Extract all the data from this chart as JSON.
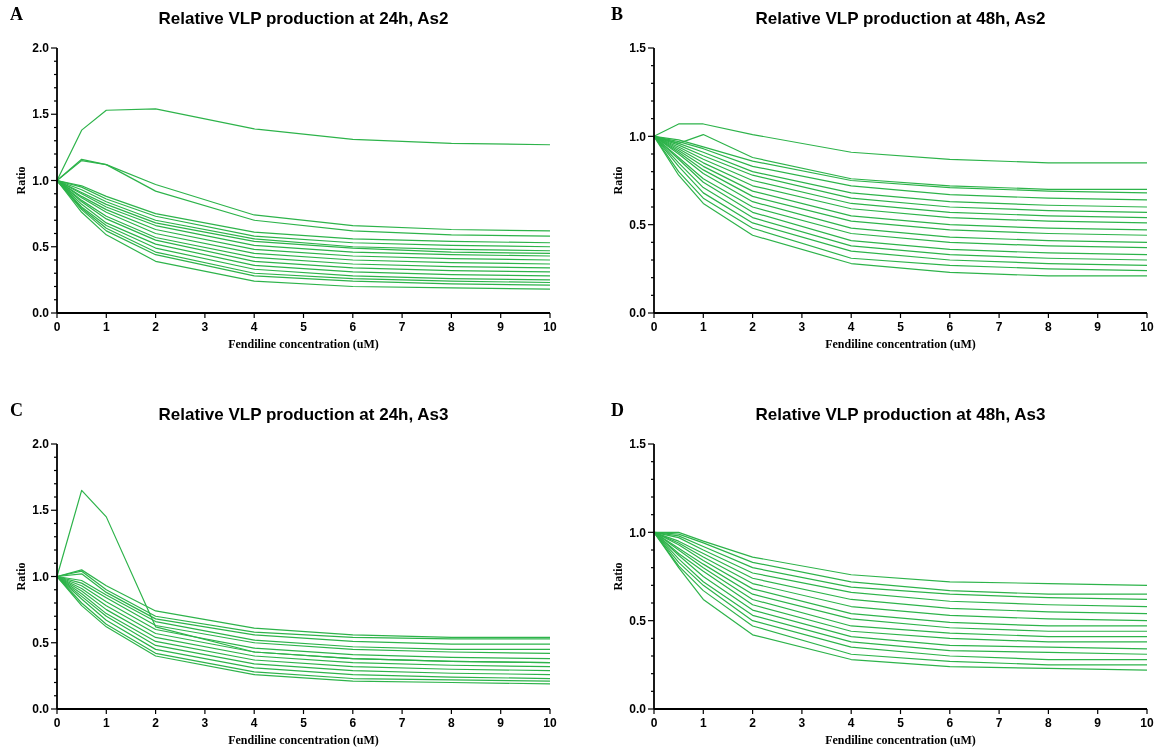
{
  "chart_data": [
    {
      "type": "line",
      "title": "Relative VLP production at 24h, As2",
      "xlabel": "Fendiline concentration (uM)",
      "ylabel": "Ratio",
      "annotations": [
        "A"
      ],
      "x": [
        0,
        0.5,
        1,
        2,
        4,
        6,
        8,
        10
      ],
      "xlim": [
        0,
        10
      ],
      "xticks": [
        0,
        1,
        2,
        3,
        4,
        5,
        6,
        7,
        8,
        9,
        10
      ],
      "ylim": [
        0,
        2
      ],
      "yticks": [
        {
          "value": 0,
          "label": "0.0"
        },
        {
          "value": 0.1,
          "label": null
        },
        {
          "value": 0.2,
          "label": null
        },
        {
          "value": 0.3,
          "label": null
        },
        {
          "value": 0.4,
          "label": null
        },
        {
          "value": 0.5,
          "label": "0.5"
        },
        {
          "value": 0.6,
          "label": null
        },
        {
          "value": 0.7,
          "label": null
        },
        {
          "value": 0.8,
          "label": null
        },
        {
          "value": 0.9,
          "label": null
        },
        {
          "value": 1,
          "label": "1.0"
        },
        {
          "value": 1.1,
          "label": null
        },
        {
          "value": 1.2,
          "label": null
        },
        {
          "value": 1.3,
          "label": null
        },
        {
          "value": 1.4,
          "label": null
        },
        {
          "value": 1.5,
          "label": "1.5"
        },
        {
          "value": 1.6,
          "label": null
        },
        {
          "value": 1.7,
          "label": null
        },
        {
          "value": 1.8,
          "label": null
        },
        {
          "value": 1.9,
          "label": null
        },
        {
          "value": 2,
          "label": "2.0"
        }
      ],
      "series": [
        {
          "color": "#2db34a",
          "values": [
            1,
            1.38,
            1.53,
            1.54,
            1.39,
            1.31,
            1.28,
            1.27
          ]
        },
        {
          "color": "#2db34a",
          "values": [
            1,
            1.16,
            1.12,
            0.97,
            0.74,
            0.66,
            0.63,
            0.62
          ]
        },
        {
          "color": "#2db34a",
          "values": [
            1,
            1.15,
            1.12,
            0.92,
            0.7,
            0.62,
            0.59,
            0.58
          ]
        },
        {
          "color": "#2db34a",
          "values": [
            1,
            0.96,
            0.88,
            0.75,
            0.61,
            0.56,
            0.54,
            0.53
          ]
        },
        {
          "color": "#2db34a",
          "values": [
            1,
            0.95,
            0.86,
            0.73,
            0.58,
            0.53,
            0.51,
            0.5
          ]
        },
        {
          "color": "#2db34a",
          "values": [
            1,
            0.93,
            0.84,
            0.7,
            0.56,
            0.5,
            0.48,
            0.47
          ]
        },
        {
          "color": "#2db34a",
          "values": [
            1,
            0.91,
            0.82,
            0.68,
            0.54,
            0.49,
            0.46,
            0.45
          ]
        },
        {
          "color": "#2db34a",
          "values": [
            1,
            0.9,
            0.8,
            0.66,
            0.51,
            0.46,
            0.44,
            0.43
          ]
        },
        {
          "color": "#2db34a",
          "values": [
            1,
            0.88,
            0.78,
            0.63,
            0.48,
            0.43,
            0.41,
            0.4
          ]
        },
        {
          "color": "#2db34a",
          "values": [
            1,
            0.87,
            0.76,
            0.6,
            0.45,
            0.4,
            0.38,
            0.37
          ]
        },
        {
          "color": "#2db34a",
          "values": [
            1,
            0.85,
            0.73,
            0.57,
            0.42,
            0.37,
            0.35,
            0.34
          ]
        },
        {
          "color": "#2db34a",
          "values": [
            1,
            0.84,
            0.71,
            0.55,
            0.39,
            0.34,
            0.32,
            0.31
          ]
        },
        {
          "color": "#2db34a",
          "values": [
            1,
            0.82,
            0.68,
            0.52,
            0.36,
            0.31,
            0.29,
            0.28
          ]
        },
        {
          "color": "#2db34a",
          "values": [
            1,
            0.8,
            0.66,
            0.49,
            0.33,
            0.28,
            0.26,
            0.25
          ]
        },
        {
          "color": "#2db34a",
          "values": [
            1,
            0.79,
            0.64,
            0.46,
            0.3,
            0.26,
            0.24,
            0.23
          ]
        },
        {
          "color": "#2db34a",
          "values": [
            1,
            0.78,
            0.62,
            0.44,
            0.28,
            0.24,
            0.22,
            0.21
          ]
        },
        {
          "color": "#2db34a",
          "values": [
            1,
            0.76,
            0.59,
            0.39,
            0.24,
            0.2,
            0.19,
            0.18
          ]
        }
      ]
    },
    {
      "type": "line",
      "title": "Relative VLP production at 48h, As2",
      "xlabel": "Fendiline concentration (uM)",
      "ylabel": "Ratio",
      "annotations": [
        "B"
      ],
      "x": [
        0,
        0.5,
        1,
        2,
        4,
        6,
        8,
        10
      ],
      "xlim": [
        0,
        10
      ],
      "xticks": [
        0,
        1,
        2,
        3,
        4,
        5,
        6,
        7,
        8,
        9,
        10
      ],
      "ylim": [
        0,
        1.5
      ],
      "yticks": [
        {
          "value": 0,
          "label": "0.0"
        },
        {
          "value": 0.1,
          "label": null
        },
        {
          "value": 0.2,
          "label": null
        },
        {
          "value": 0.3,
          "label": null
        },
        {
          "value": 0.4,
          "label": null
        },
        {
          "value": 0.5,
          "label": "0.5"
        },
        {
          "value": 0.6,
          "label": null
        },
        {
          "value": 0.7,
          "label": null
        },
        {
          "value": 0.8,
          "label": null
        },
        {
          "value": 0.9,
          "label": null
        },
        {
          "value": 1,
          "label": "1.0"
        },
        {
          "value": 1.1,
          "label": null
        },
        {
          "value": 1.2,
          "label": null
        },
        {
          "value": 1.3,
          "label": null
        },
        {
          "value": 1.4,
          "label": null
        },
        {
          "value": 1.5,
          "label": "1.5"
        }
      ],
      "series": [
        {
          "color": "#2db34a",
          "values": [
            1,
            1.07,
            1.07,
            1.01,
            0.91,
            0.87,
            0.85,
            0.85
          ]
        },
        {
          "color": "#2db34a",
          "values": [
            1,
            0.96,
            1.01,
            0.88,
            0.76,
            0.72,
            0.7,
            0.7
          ]
        },
        {
          "color": "#2db34a",
          "values": [
            1,
            0.98,
            0.94,
            0.86,
            0.75,
            0.71,
            0.69,
            0.68
          ]
        },
        {
          "color": "#2db34a",
          "values": [
            1,
            0.97,
            0.93,
            0.83,
            0.72,
            0.67,
            0.65,
            0.64
          ]
        },
        {
          "color": "#2db34a",
          "values": [
            1,
            0.96,
            0.91,
            0.8,
            0.68,
            0.63,
            0.61,
            0.6
          ]
        },
        {
          "color": "#2db34a",
          "values": [
            1,
            0.95,
            0.89,
            0.78,
            0.65,
            0.6,
            0.58,
            0.57
          ]
        },
        {
          "color": "#2db34a",
          "values": [
            1,
            0.94,
            0.87,
            0.75,
            0.62,
            0.57,
            0.55,
            0.54
          ]
        },
        {
          "color": "#2db34a",
          "values": [
            1,
            0.93,
            0.85,
            0.72,
            0.59,
            0.54,
            0.52,
            0.51
          ]
        },
        {
          "color": "#2db34a",
          "values": [
            1,
            0.92,
            0.83,
            0.69,
            0.55,
            0.5,
            0.48,
            0.47
          ]
        },
        {
          "color": "#2db34a",
          "values": [
            1,
            0.91,
            0.81,
            0.66,
            0.52,
            0.47,
            0.45,
            0.44
          ]
        },
        {
          "color": "#2db34a",
          "values": [
            1,
            0.9,
            0.79,
            0.63,
            0.48,
            0.43,
            0.41,
            0.4
          ]
        },
        {
          "color": "#2db34a",
          "values": [
            1,
            0.88,
            0.76,
            0.6,
            0.45,
            0.4,
            0.38,
            0.37
          ]
        },
        {
          "color": "#2db34a",
          "values": [
            1,
            0.87,
            0.74,
            0.57,
            0.41,
            0.36,
            0.34,
            0.33
          ]
        },
        {
          "color": "#2db34a",
          "values": [
            1,
            0.85,
            0.71,
            0.54,
            0.38,
            0.33,
            0.31,
            0.3
          ]
        },
        {
          "color": "#2db34a",
          "values": [
            1,
            0.83,
            0.68,
            0.51,
            0.35,
            0.3,
            0.28,
            0.27
          ]
        },
        {
          "color": "#2db34a",
          "values": [
            1,
            0.8,
            0.65,
            0.48,
            0.31,
            0.27,
            0.25,
            0.24
          ]
        },
        {
          "color": "#2db34a",
          "values": [
            1,
            0.78,
            0.62,
            0.44,
            0.28,
            0.23,
            0.21,
            0.21
          ]
        }
      ]
    },
    {
      "type": "line",
      "title": "Relative VLP production at 24h, As3",
      "xlabel": "Fendiline concentration (uM)",
      "ylabel": "Ratio",
      "annotations": [
        "C"
      ],
      "x": [
        0,
        0.5,
        1,
        2,
        4,
        6,
        8,
        10
      ],
      "xlim": [
        0,
        10
      ],
      "xticks": [
        0,
        1,
        2,
        3,
        4,
        5,
        6,
        7,
        8,
        9,
        10
      ],
      "ylim": [
        0,
        2
      ],
      "yticks": [
        {
          "value": 0,
          "label": "0.0"
        },
        {
          "value": 0.1,
          "label": null
        },
        {
          "value": 0.2,
          "label": null
        },
        {
          "value": 0.3,
          "label": null
        },
        {
          "value": 0.4,
          "label": null
        },
        {
          "value": 0.5,
          "label": "0.5"
        },
        {
          "value": 0.6,
          "label": null
        },
        {
          "value": 0.7,
          "label": null
        },
        {
          "value": 0.8,
          "label": null
        },
        {
          "value": 0.9,
          "label": null
        },
        {
          "value": 1,
          "label": "1.0"
        },
        {
          "value": 1.1,
          "label": null
        },
        {
          "value": 1.2,
          "label": null
        },
        {
          "value": 1.3,
          "label": null
        },
        {
          "value": 1.4,
          "label": null
        },
        {
          "value": 1.5,
          "label": "1.5"
        },
        {
          "value": 1.6,
          "label": null
        },
        {
          "value": 1.7,
          "label": null
        },
        {
          "value": 1.8,
          "label": null
        },
        {
          "value": 1.9,
          "label": null
        },
        {
          "value": 2,
          "label": "2.0"
        }
      ],
      "series": [
        {
          "color": "#2db34a",
          "values": [
            1,
            1.65,
            1.45,
            0.62,
            0.43,
            0.38,
            0.36,
            0.35
          ]
        },
        {
          "color": "#2db34a",
          "values": [
            1,
            1.05,
            0.93,
            0.74,
            0.61,
            0.56,
            0.54,
            0.54
          ]
        },
        {
          "color": "#2db34a",
          "values": [
            1,
            1.04,
            0.9,
            0.7,
            0.58,
            0.54,
            0.53,
            0.53
          ]
        },
        {
          "color": "#2db34a",
          "values": [
            1,
            1.02,
            0.88,
            0.68,
            0.56,
            0.51,
            0.49,
            0.49
          ]
        },
        {
          "color": "#2db34a",
          "values": [
            1,
            0.97,
            0.86,
            0.66,
            0.52,
            0.47,
            0.45,
            0.45
          ]
        },
        {
          "color": "#2db34a",
          "values": [
            1,
            0.95,
            0.84,
            0.63,
            0.5,
            0.45,
            0.43,
            0.42
          ]
        },
        {
          "color": "#2db34a",
          "values": [
            1,
            0.93,
            0.81,
            0.6,
            0.46,
            0.41,
            0.39,
            0.38
          ]
        },
        {
          "color": "#2db34a",
          "values": [
            1,
            0.91,
            0.78,
            0.57,
            0.43,
            0.38,
            0.36,
            0.35
          ]
        },
        {
          "color": "#2db34a",
          "values": [
            1,
            0.89,
            0.75,
            0.54,
            0.4,
            0.35,
            0.33,
            0.32
          ]
        },
        {
          "color": "#2db34a",
          "values": [
            1,
            0.87,
            0.72,
            0.51,
            0.37,
            0.32,
            0.3,
            0.29
          ]
        },
        {
          "color": "#2db34a",
          "values": [
            1,
            0.85,
            0.7,
            0.48,
            0.34,
            0.29,
            0.27,
            0.26
          ]
        },
        {
          "color": "#2db34a",
          "values": [
            1,
            0.83,
            0.67,
            0.45,
            0.31,
            0.26,
            0.24,
            0.23
          ]
        },
        {
          "color": "#2db34a",
          "values": [
            1,
            0.8,
            0.64,
            0.42,
            0.28,
            0.23,
            0.22,
            0.21
          ]
        },
        {
          "color": "#2db34a",
          "values": [
            1,
            0.78,
            0.62,
            0.4,
            0.26,
            0.21,
            0.2,
            0.19
          ]
        }
      ]
    },
    {
      "type": "line",
      "title": "Relative VLP production at 48h, As3",
      "xlabel": "Fendiline concentration (uM)",
      "ylabel": "Ratio",
      "annotations": [
        "D"
      ],
      "x": [
        0,
        0.5,
        1,
        2,
        4,
        6,
        8,
        10
      ],
      "xlim": [
        0,
        10
      ],
      "xticks": [
        0,
        1,
        2,
        3,
        4,
        5,
        6,
        7,
        8,
        9,
        10
      ],
      "ylim": [
        0,
        1.5
      ],
      "yticks": [
        {
          "value": 0,
          "label": "0.0"
        },
        {
          "value": 0.1,
          "label": null
        },
        {
          "value": 0.2,
          "label": null
        },
        {
          "value": 0.3,
          "label": null
        },
        {
          "value": 0.4,
          "label": null
        },
        {
          "value": 0.5,
          "label": "0.5"
        },
        {
          "value": 0.6,
          "label": null
        },
        {
          "value": 0.7,
          "label": null
        },
        {
          "value": 0.8,
          "label": null
        },
        {
          "value": 0.9,
          "label": null
        },
        {
          "value": 1,
          "label": "1.0"
        },
        {
          "value": 1.1,
          "label": null
        },
        {
          "value": 1.2,
          "label": null
        },
        {
          "value": 1.3,
          "label": null
        },
        {
          "value": 1.4,
          "label": null
        },
        {
          "value": 1.5,
          "label": "1.5"
        }
      ],
      "series": [
        {
          "color": "#2db34a",
          "values": [
            1,
            1,
            0.95,
            0.86,
            0.76,
            0.72,
            0.71,
            0.7
          ]
        },
        {
          "color": "#2db34a",
          "values": [
            1,
            0.99,
            0.94,
            0.83,
            0.72,
            0.67,
            0.65,
            0.65
          ]
        },
        {
          "color": "#2db34a",
          "values": [
            1,
            0.98,
            0.92,
            0.8,
            0.69,
            0.65,
            0.63,
            0.62
          ]
        },
        {
          "color": "#2db34a",
          "values": [
            1,
            0.97,
            0.9,
            0.77,
            0.66,
            0.61,
            0.59,
            0.58
          ]
        },
        {
          "color": "#2db34a",
          "values": [
            1,
            0.95,
            0.88,
            0.74,
            0.62,
            0.57,
            0.55,
            0.54
          ]
        },
        {
          "color": "#2db34a",
          "values": [
            1,
            0.94,
            0.86,
            0.71,
            0.58,
            0.53,
            0.51,
            0.5
          ]
        },
        {
          "color": "#2db34a",
          "values": [
            1,
            0.93,
            0.84,
            0.68,
            0.54,
            0.49,
            0.47,
            0.47
          ]
        },
        {
          "color": "#2db34a",
          "values": [
            1,
            0.91,
            0.82,
            0.65,
            0.51,
            0.46,
            0.44,
            0.44
          ]
        },
        {
          "color": "#2db34a",
          "values": [
            1,
            0.9,
            0.8,
            0.62,
            0.47,
            0.43,
            0.41,
            0.41
          ]
        },
        {
          "color": "#2db34a",
          "values": [
            1,
            0.88,
            0.78,
            0.59,
            0.44,
            0.4,
            0.38,
            0.38
          ]
        },
        {
          "color": "#2db34a",
          "values": [
            1,
            0.87,
            0.75,
            0.56,
            0.41,
            0.36,
            0.35,
            0.34
          ]
        },
        {
          "color": "#2db34a",
          "values": [
            1,
            0.85,
            0.72,
            0.53,
            0.38,
            0.33,
            0.32,
            0.31
          ]
        },
        {
          "color": "#2db34a",
          "values": [
            1,
            0.83,
            0.7,
            0.5,
            0.35,
            0.3,
            0.28,
            0.28
          ]
        },
        {
          "color": "#2db34a",
          "values": [
            1,
            0.81,
            0.67,
            0.47,
            0.31,
            0.27,
            0.25,
            0.25
          ]
        },
        {
          "color": "#2db34a",
          "values": [
            1,
            0.8,
            0.62,
            0.42,
            0.28,
            0.24,
            0.23,
            0.22
          ]
        }
      ]
    }
  ]
}
